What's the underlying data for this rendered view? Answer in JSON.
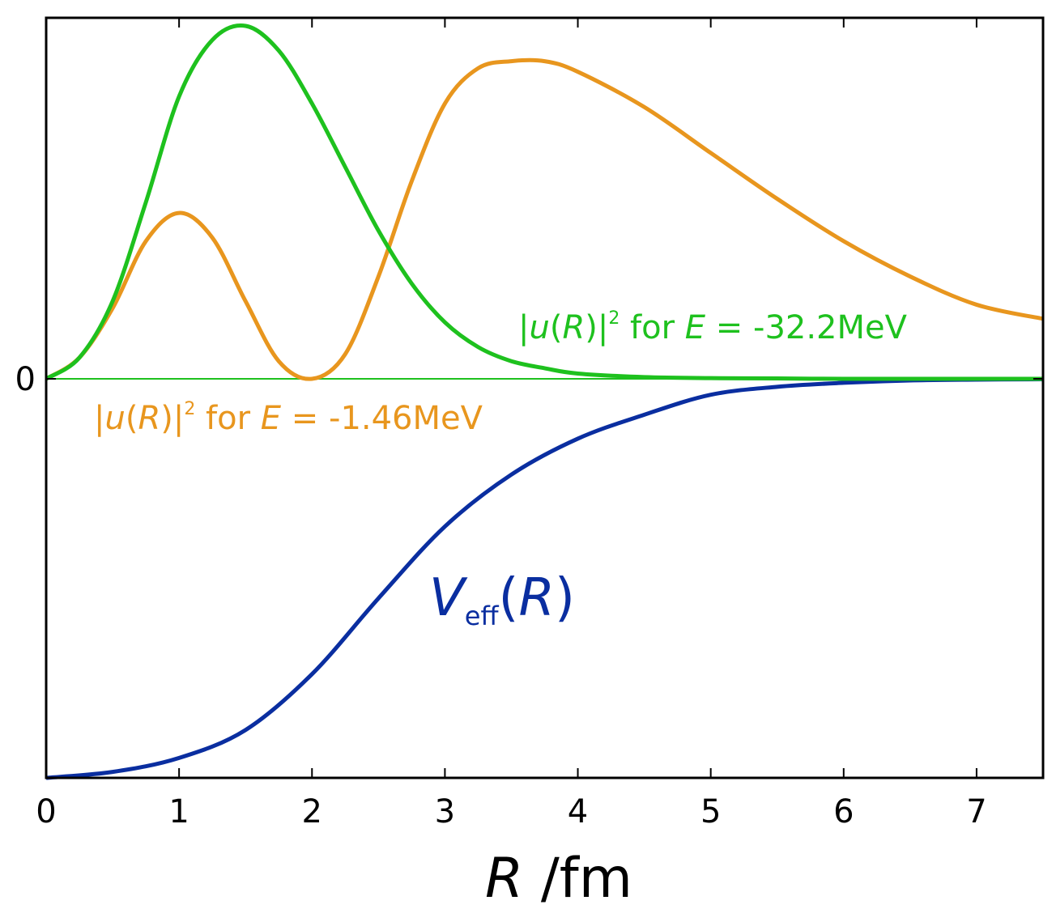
{
  "chart_data": {
    "type": "line",
    "xlabel": {
      "var": "R",
      "unit": " /fm"
    },
    "xlim": [
      0,
      7.5
    ],
    "xticks": [
      "0",
      "1",
      "2",
      "3",
      "4",
      "5",
      "6",
      "7"
    ],
    "yticks": [
      "0"
    ],
    "grid": false,
    "legend": "none",
    "colors": {
      "green": "#1ec11e",
      "orange": "#e8961e",
      "blue": "#0a2ea0"
    },
    "series": [
      {
        "id": "psi_ground",
        "x": [
          0,
          0.25,
          0.5,
          0.75,
          1.0,
          1.25,
          1.5,
          1.75,
          2.0,
          2.25,
          2.5,
          2.75,
          3.0,
          3.25,
          3.5,
          3.75,
          4.0,
          4.5,
          5.0,
          5.5,
          6.0,
          6.5,
          7.0,
          7.5
        ],
        "y": [
          0,
          0.06,
          0.22,
          0.5,
          0.8,
          0.96,
          1.0,
          0.93,
          0.78,
          0.6,
          0.42,
          0.27,
          0.16,
          0.09,
          0.05,
          0.03,
          0.015,
          0.005,
          0.002,
          0.001,
          0.0,
          0.0,
          0.0,
          0.0
        ]
      },
      {
        "id": "psi_excited",
        "x": [
          0,
          0.25,
          0.5,
          0.75,
          1.0,
          1.25,
          1.5,
          1.75,
          2.0,
          2.25,
          2.5,
          2.75,
          3.0,
          3.25,
          3.5,
          3.75,
          4.0,
          4.5,
          5.0,
          5.5,
          6.0,
          6.5,
          7.0,
          7.5
        ],
        "y": [
          0,
          0.06,
          0.2,
          0.39,
          0.47,
          0.4,
          0.22,
          0.05,
          0.0,
          0.07,
          0.29,
          0.56,
          0.78,
          0.88,
          0.9,
          0.9,
          0.87,
          0.77,
          0.64,
          0.51,
          0.39,
          0.29,
          0.21,
          0.17
        ]
      },
      {
        "id": "V_eff",
        "x": [
          0,
          0.5,
          1.0,
          1.5,
          2.0,
          2.5,
          3.0,
          3.5,
          4.0,
          4.5,
          5.0,
          5.5,
          6.0,
          6.5,
          7.0,
          7.5
        ],
        "y": [
          -1.0,
          -0.985,
          -0.95,
          -0.88,
          -0.74,
          -0.55,
          -0.37,
          -0.24,
          -0.15,
          -0.09,
          -0.04,
          -0.02,
          -0.01,
          -0.004,
          -0.002,
          -0.001
        ]
      }
    ],
    "annotations": {
      "ground": {
        "bar": "|",
        "u": "u",
        "paren": "(",
        "r": "R",
        "paren_close": ")|",
        "sup": "2",
        "for": " for ",
        "e": "E",
        "value": " = -32.2MeV"
      },
      "excited": {
        "bar": "|",
        "u": "u",
        "paren": "(",
        "r": "R",
        "paren_close": ")|",
        "sup": "2",
        "for": " for ",
        "e": "E",
        "value": " = -1.46MeV"
      },
      "potential": {
        "v": "V",
        "sub": "eff",
        "paren": "(",
        "r": "R",
        "paren_close": ")"
      }
    }
  }
}
